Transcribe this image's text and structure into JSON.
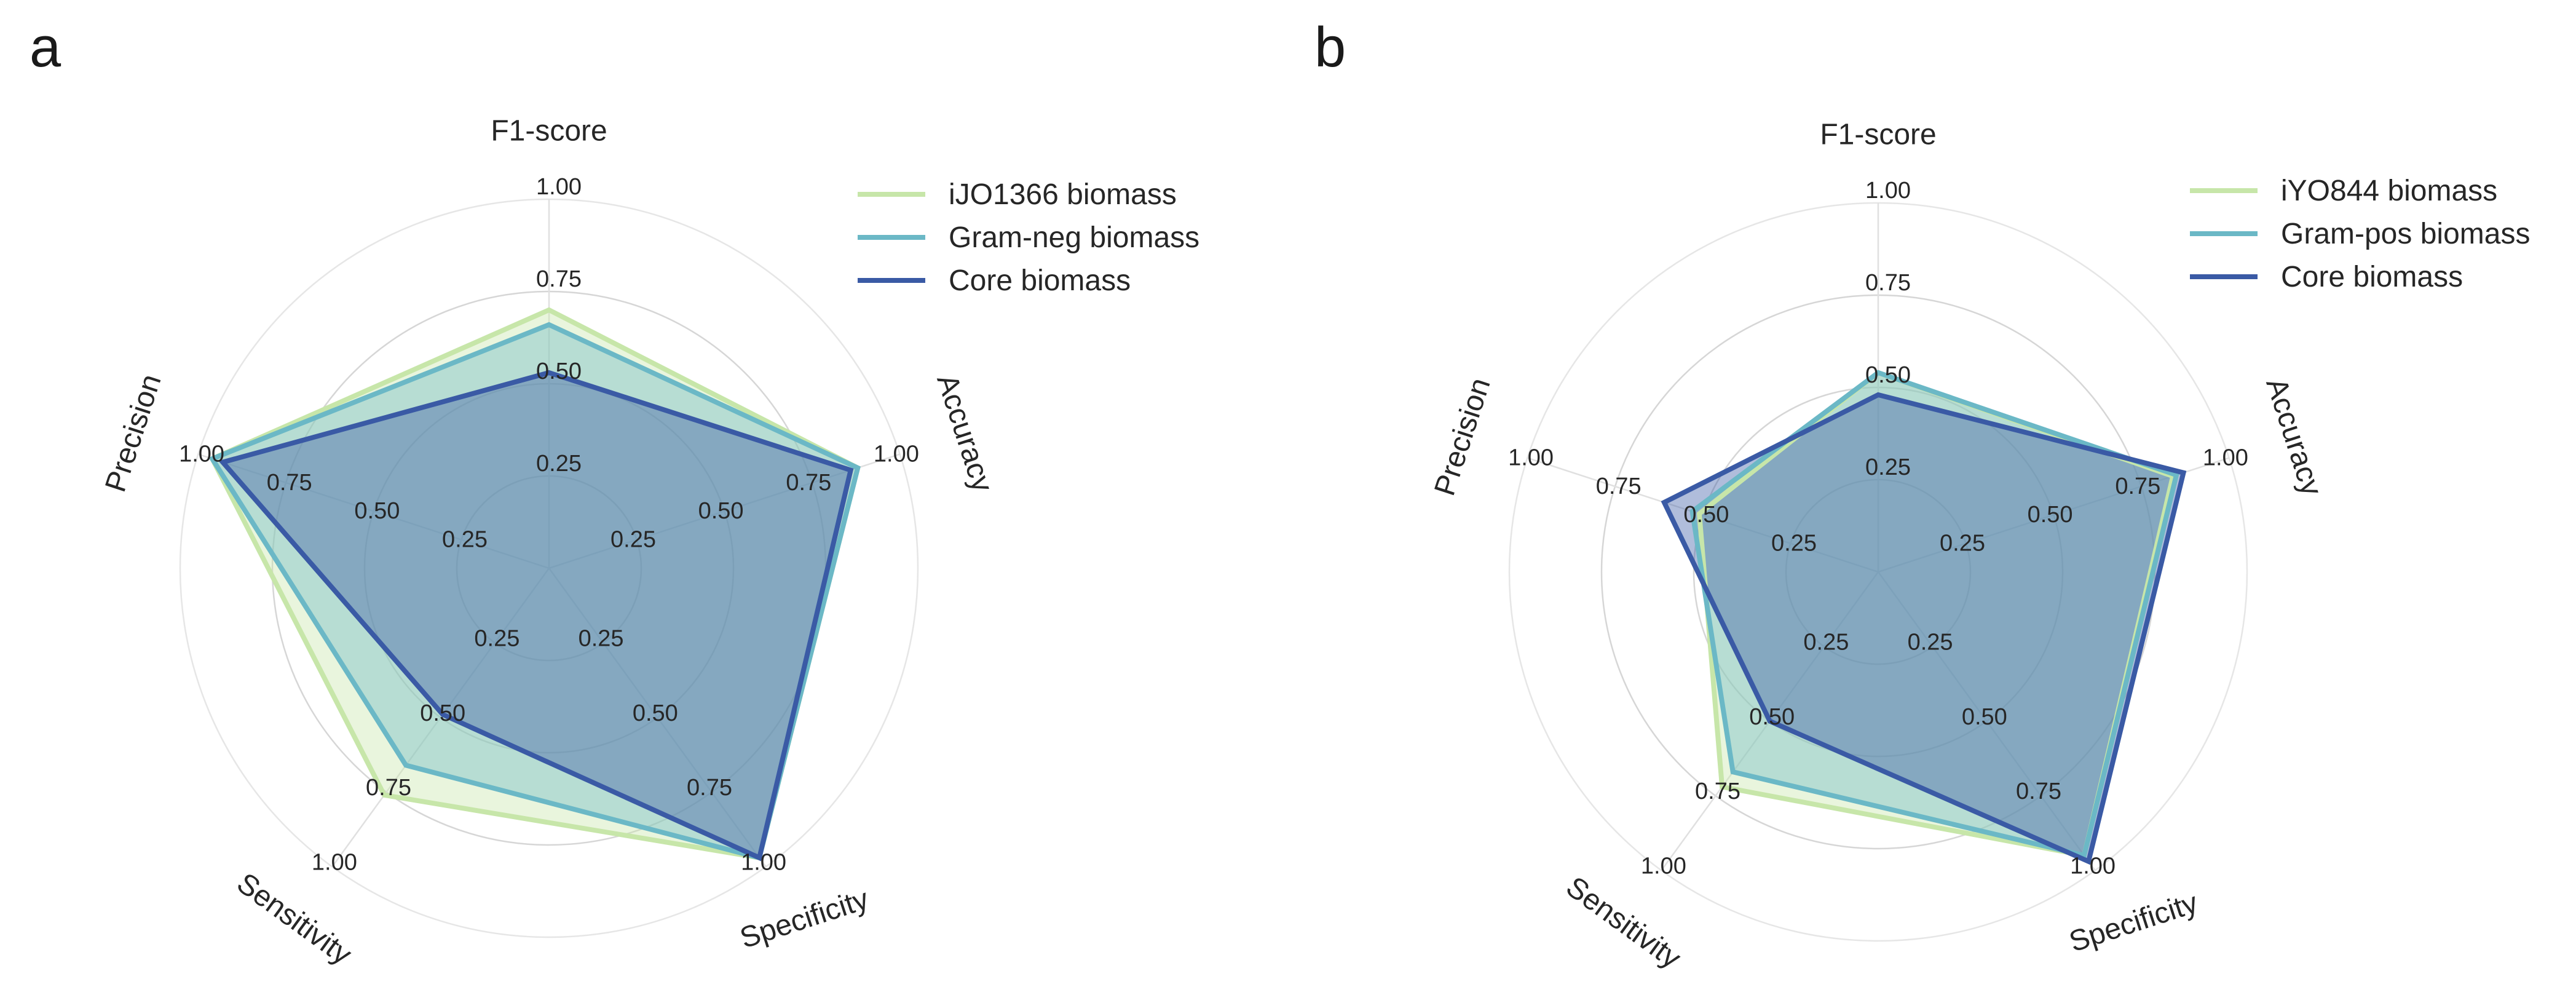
{
  "chart_data": [
    {
      "type": "radar",
      "panel_label": "a",
      "axes": [
        "F1-score",
        "Accuracy",
        "Specificity",
        "Sensitivity",
        "Precision"
      ],
      "rlim": [
        0,
        1
      ],
      "ticks": [
        "0.25",
        "0.50",
        "0.75",
        "1.00"
      ],
      "grid": true,
      "legend_position": "top-right",
      "series": [
        {
          "name": "iJO1366 biomass",
          "color": "#c7e6a9",
          "values": [
            0.7,
            0.88,
            0.97,
            0.76,
            0.96
          ]
        },
        {
          "name": "Gram-neg biomass",
          "color": "#6bb8c6",
          "values": [
            0.66,
            0.88,
            0.97,
            0.66,
            0.96
          ]
        },
        {
          "name": "Core biomass",
          "color": "#3a5aa5",
          "values": [
            0.53,
            0.86,
            0.97,
            0.49,
            0.93
          ]
        }
      ]
    },
    {
      "type": "radar",
      "panel_label": "b",
      "axes": [
        "F1-score",
        "Accuracy",
        "Specificity",
        "Sensitivity",
        "Precision"
      ],
      "rlim": [
        0,
        1
      ],
      "ticks": [
        "0.25",
        "0.50",
        "0.75",
        "1.00"
      ],
      "grid": true,
      "legend_position": "top-right",
      "series": [
        {
          "name": "iYO844 biomass",
          "color": "#c7e6a9",
          "values": [
            0.54,
            0.84,
            0.95,
            0.72,
            0.51
          ]
        },
        {
          "name": "Gram-pos biomass",
          "color": "#6bb8c6",
          "values": [
            0.54,
            0.85,
            0.95,
            0.67,
            0.53
          ]
        },
        {
          "name": "Core biomass",
          "color": "#3a5aa5",
          "values": [
            0.48,
            0.87,
            0.97,
            0.5,
            0.61
          ]
        }
      ]
    }
  ]
}
